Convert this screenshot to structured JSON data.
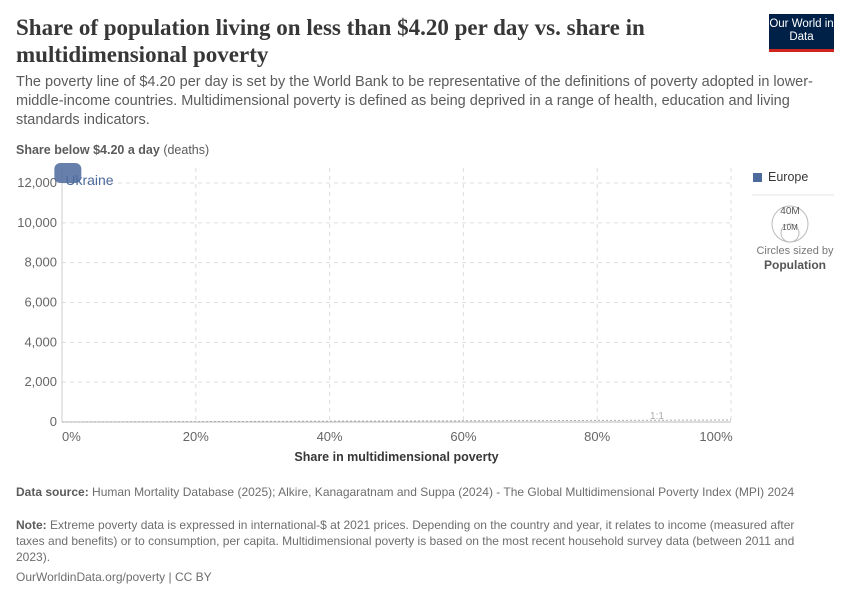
{
  "header": {
    "title": "Share of population living on less than $4.20 per day vs. share in multidimensional poverty",
    "subtitle": "The poverty line of $4.20 per day is set by the World Bank to be representative of the definitions of poverty adopted in lower-middle-income countries. Multidimensional poverty is defined as being deprived in a range of health, education and living standards indicators.",
    "logo": "Our World in Data"
  },
  "chart_data": {
    "type": "scatter",
    "ylabel": "Share below $4.20 a day",
    "ylabel_unit": "(deaths)",
    "xlabel": "Share in multidimensional poverty",
    "xlim": [
      0,
      100
    ],
    "ylim": [
      0,
      12000
    ],
    "x_ticks": [
      "0%",
      "20%",
      "40%",
      "60%",
      "80%",
      "100%"
    ],
    "y_ticks": [
      "0",
      "2,000",
      "4,000",
      "6,000",
      "8,000",
      "10,000",
      "12,000"
    ],
    "grid": true,
    "reference_line_label": "1:1",
    "legend_position": "right",
    "legend": [
      {
        "name": "Europe",
        "color": "#4c6a9c"
      }
    ],
    "size_legend": {
      "values": [
        "40M",
        "10M"
      ],
      "note": "Circles sized by",
      "variable": "Population"
    },
    "points": [
      {
        "label": "Ukraine",
        "x": 0.5,
        "y": 12500,
        "region": "Europe"
      }
    ]
  },
  "footer": {
    "source_label": "Data source:",
    "source": "Human Mortality Database (2025); Alkire, Kanagaratnam and Suppa (2024) - The Global Multidimensional Poverty Index (MPI) 2024",
    "note_label": "Note:",
    "note": "Extreme poverty data is expressed in international-$ at 2021 prices. Depending on the country and year, it relates to income (measured after taxes and benefits) or to consumption, per capita. Multidimensional poverty is based on the most recent household survey data (between 2011 and 2023).",
    "credit": "OurWorldinData.org/poverty | CC BY"
  }
}
